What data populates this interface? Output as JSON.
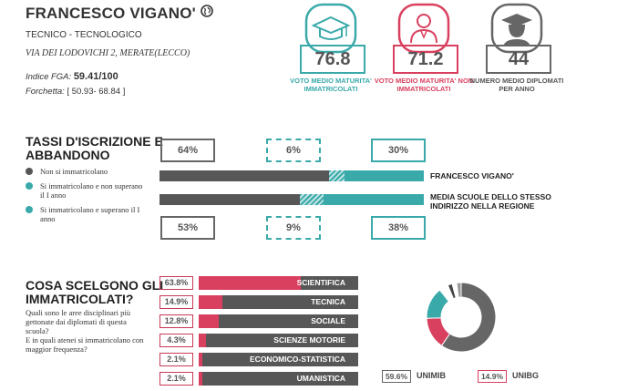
{
  "school": {
    "name": "FRANCESCO VIGANO'",
    "type": "TECNICO - TECNOLOGICO",
    "address": "VIA DEI LODOVICHI 2, MERATE(LECCO)",
    "fga_label": "Indice FGA:",
    "fga_value": "59.41/100",
    "range_label": "Forchetta:",
    "range_value": "[ 50.93- 68.84 ]"
  },
  "stats": [
    {
      "value": "76.8",
      "caption": "VOTO MEDIO MATURITA' IMMATRICOLATI",
      "color": "#3aa9a9",
      "icon": "graduation-cap-icon"
    },
    {
      "value": "71.2",
      "caption": "VOTO MEDIO MATURITA' NON IMMATRICOLATI",
      "color": "#d9405f",
      "icon": "person-icon"
    },
    {
      "value": "44",
      "caption": "NUMERO MEDIO DIPLOMATI PER ANNO",
      "color": "#666666",
      "icon": "graduate-icon"
    }
  ],
  "enrollment": {
    "title_line1": "TASSI D'ISCRIZIONE E",
    "title_line2": "ABBANDONO",
    "legend": [
      {
        "label": "Non si immatricolano",
        "color": "#575757"
      },
      {
        "label": "Si immatricolano e non superano il I anno",
        "color": "#3aa9a9"
      },
      {
        "label": "Si immatricolano e superano il I anno",
        "color": "#3aa9a9"
      }
    ],
    "top_pcts": [
      "64%",
      "6%",
      "30%"
    ],
    "bottom_pcts": [
      "53%",
      "9%",
      "38%"
    ],
    "rows": [
      {
        "label": "FRANCESCO VIGANO'",
        "values": [
          64,
          6,
          30
        ]
      },
      {
        "label": "MEDIA SCUOLE DELLO STESSO INDIRIZZO NELLA REGIONE",
        "values": [
          53,
          9,
          38
        ]
      }
    ]
  },
  "choices": {
    "title_line1": "COSA SCELGONO GLI",
    "title_line2": "IMMATRICOLATI?",
    "question_1": "Quali sono le aree disciplinari più gettonate dai diplomati di questa scuola?",
    "question_2": "E in quali atenei si immatricolano con maggior frequenza?",
    "categories": [
      {
        "pct": "63.8%",
        "name": "SCIENTIFICA",
        "value": 63.8
      },
      {
        "pct": "14.9%",
        "name": "TECNICA",
        "value": 14.9
      },
      {
        "pct": "12.8%",
        "name": "SOCIALE",
        "value": 12.8
      },
      {
        "pct": "4.3%",
        "name": "SCIENZE MOTORIE",
        "value": 4.3
      },
      {
        "pct": "2.1%",
        "name": "ECONOMICO-STATISTICA",
        "value": 2.1
      },
      {
        "pct": "2.1%",
        "name": "UMANISTICA",
        "value": 2.1
      }
    ],
    "universities": [
      {
        "pct": "59.6%",
        "name": "UNIMIB",
        "value": 59.6,
        "color": "#666666"
      },
      {
        "pct": "14.9%",
        "name": "UNIBG",
        "value": 14.9,
        "color": "#d9405f"
      }
    ],
    "donut_other": [
      {
        "value": 14.9,
        "color": "#3aa9a9"
      },
      {
        "value": 4.3,
        "color": "#ffffff"
      },
      {
        "value": 2.1,
        "color": "#444444"
      },
      {
        "value": 2.1,
        "color": "#ffffff"
      },
      {
        "value": 2.1,
        "color": "#999999"
      }
    ]
  }
}
